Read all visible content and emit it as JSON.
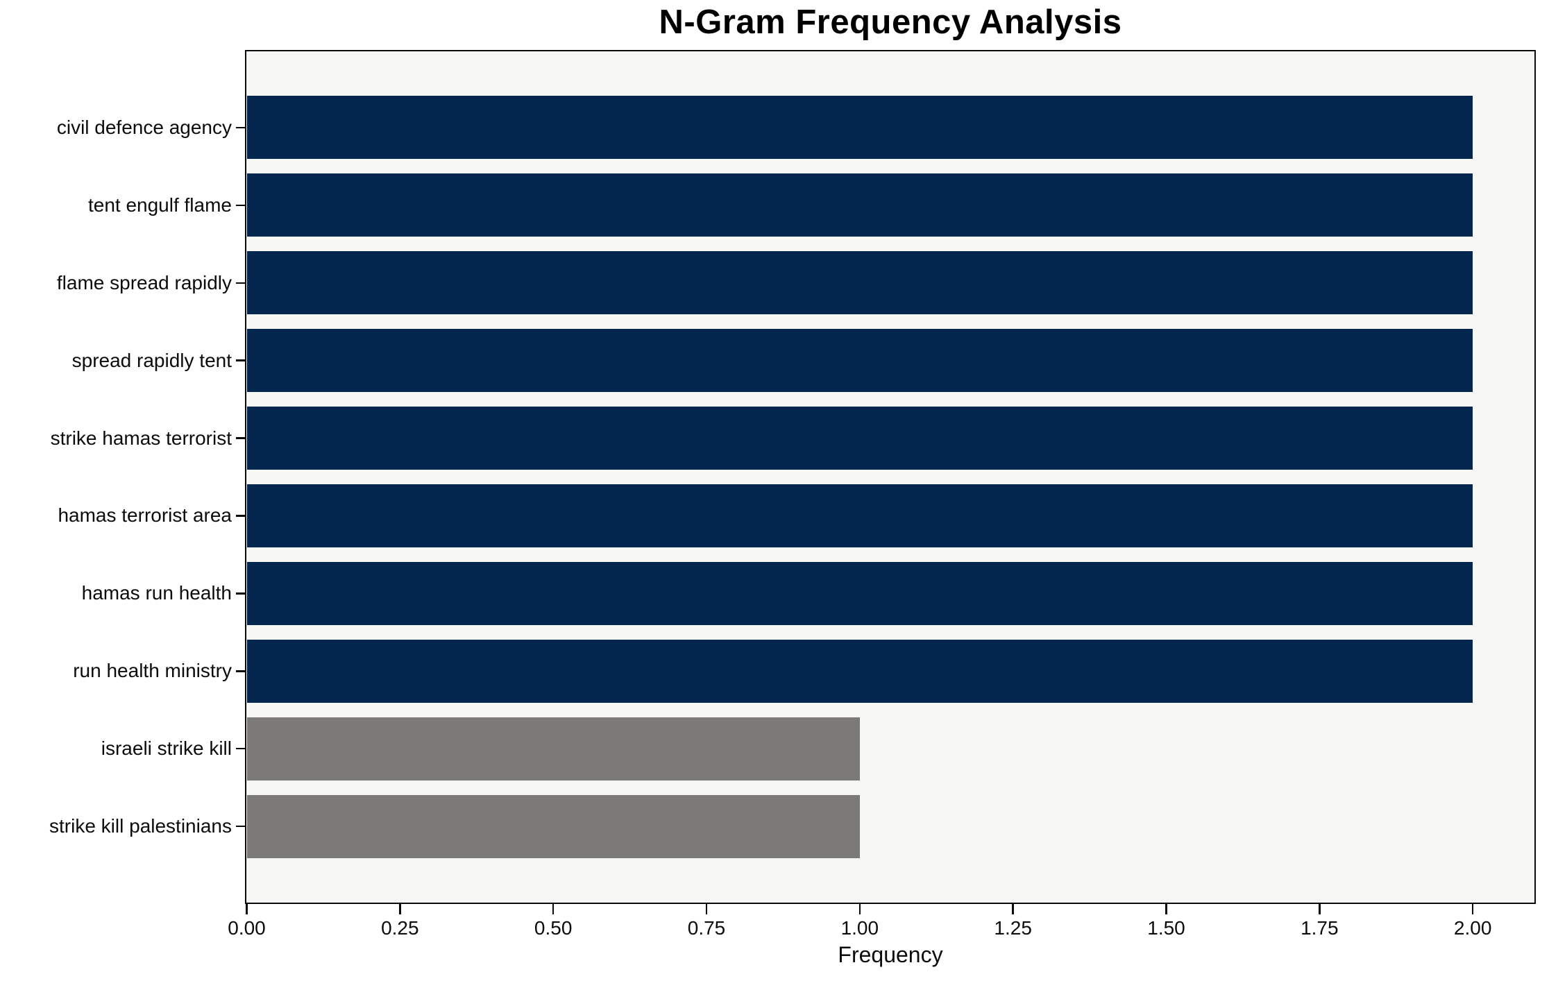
{
  "chart_data": {
    "type": "bar",
    "orientation": "horizontal",
    "title": "N-Gram Frequency Analysis",
    "xlabel": "Frequency",
    "ylabel": "",
    "categories": [
      "civil defence agency",
      "tent engulf flame",
      "flame spread rapidly",
      "spread rapidly tent",
      "strike hamas terrorist",
      "hamas terrorist area",
      "hamas run health",
      "run health ministry",
      "israeli strike kill",
      "strike kill palestinians"
    ],
    "values": [
      2,
      2,
      2,
      2,
      2,
      2,
      2,
      2,
      1,
      1
    ],
    "bar_colors": [
      "#02264d",
      "#02264d",
      "#02264d",
      "#02264d",
      "#02264d",
      "#02264d",
      "#02264d",
      "#02264d",
      "#7b7a77",
      "#7b7a77"
    ],
    "xlim": [
      0,
      2.1
    ],
    "xticks": {
      "values": [
        0,
        0.25,
        0.5,
        0.75,
        1.0,
        1.25,
        1.5,
        1.75,
        2.0
      ],
      "labels": [
        "0.00",
        "0.25",
        "0.50",
        "0.75",
        "1.00",
        "1.25",
        "1.50",
        "1.75",
        "2.00"
      ]
    },
    "grid": false,
    "legend": null,
    "colors": {
      "bar_primary": "#02264d",
      "bar_secondary": "#7b7a77",
      "plot_background": "#f6f6f5",
      "figure_background": "#ffffff",
      "spine": "#0a0a0a",
      "text": "#0c0c0c"
    }
  }
}
